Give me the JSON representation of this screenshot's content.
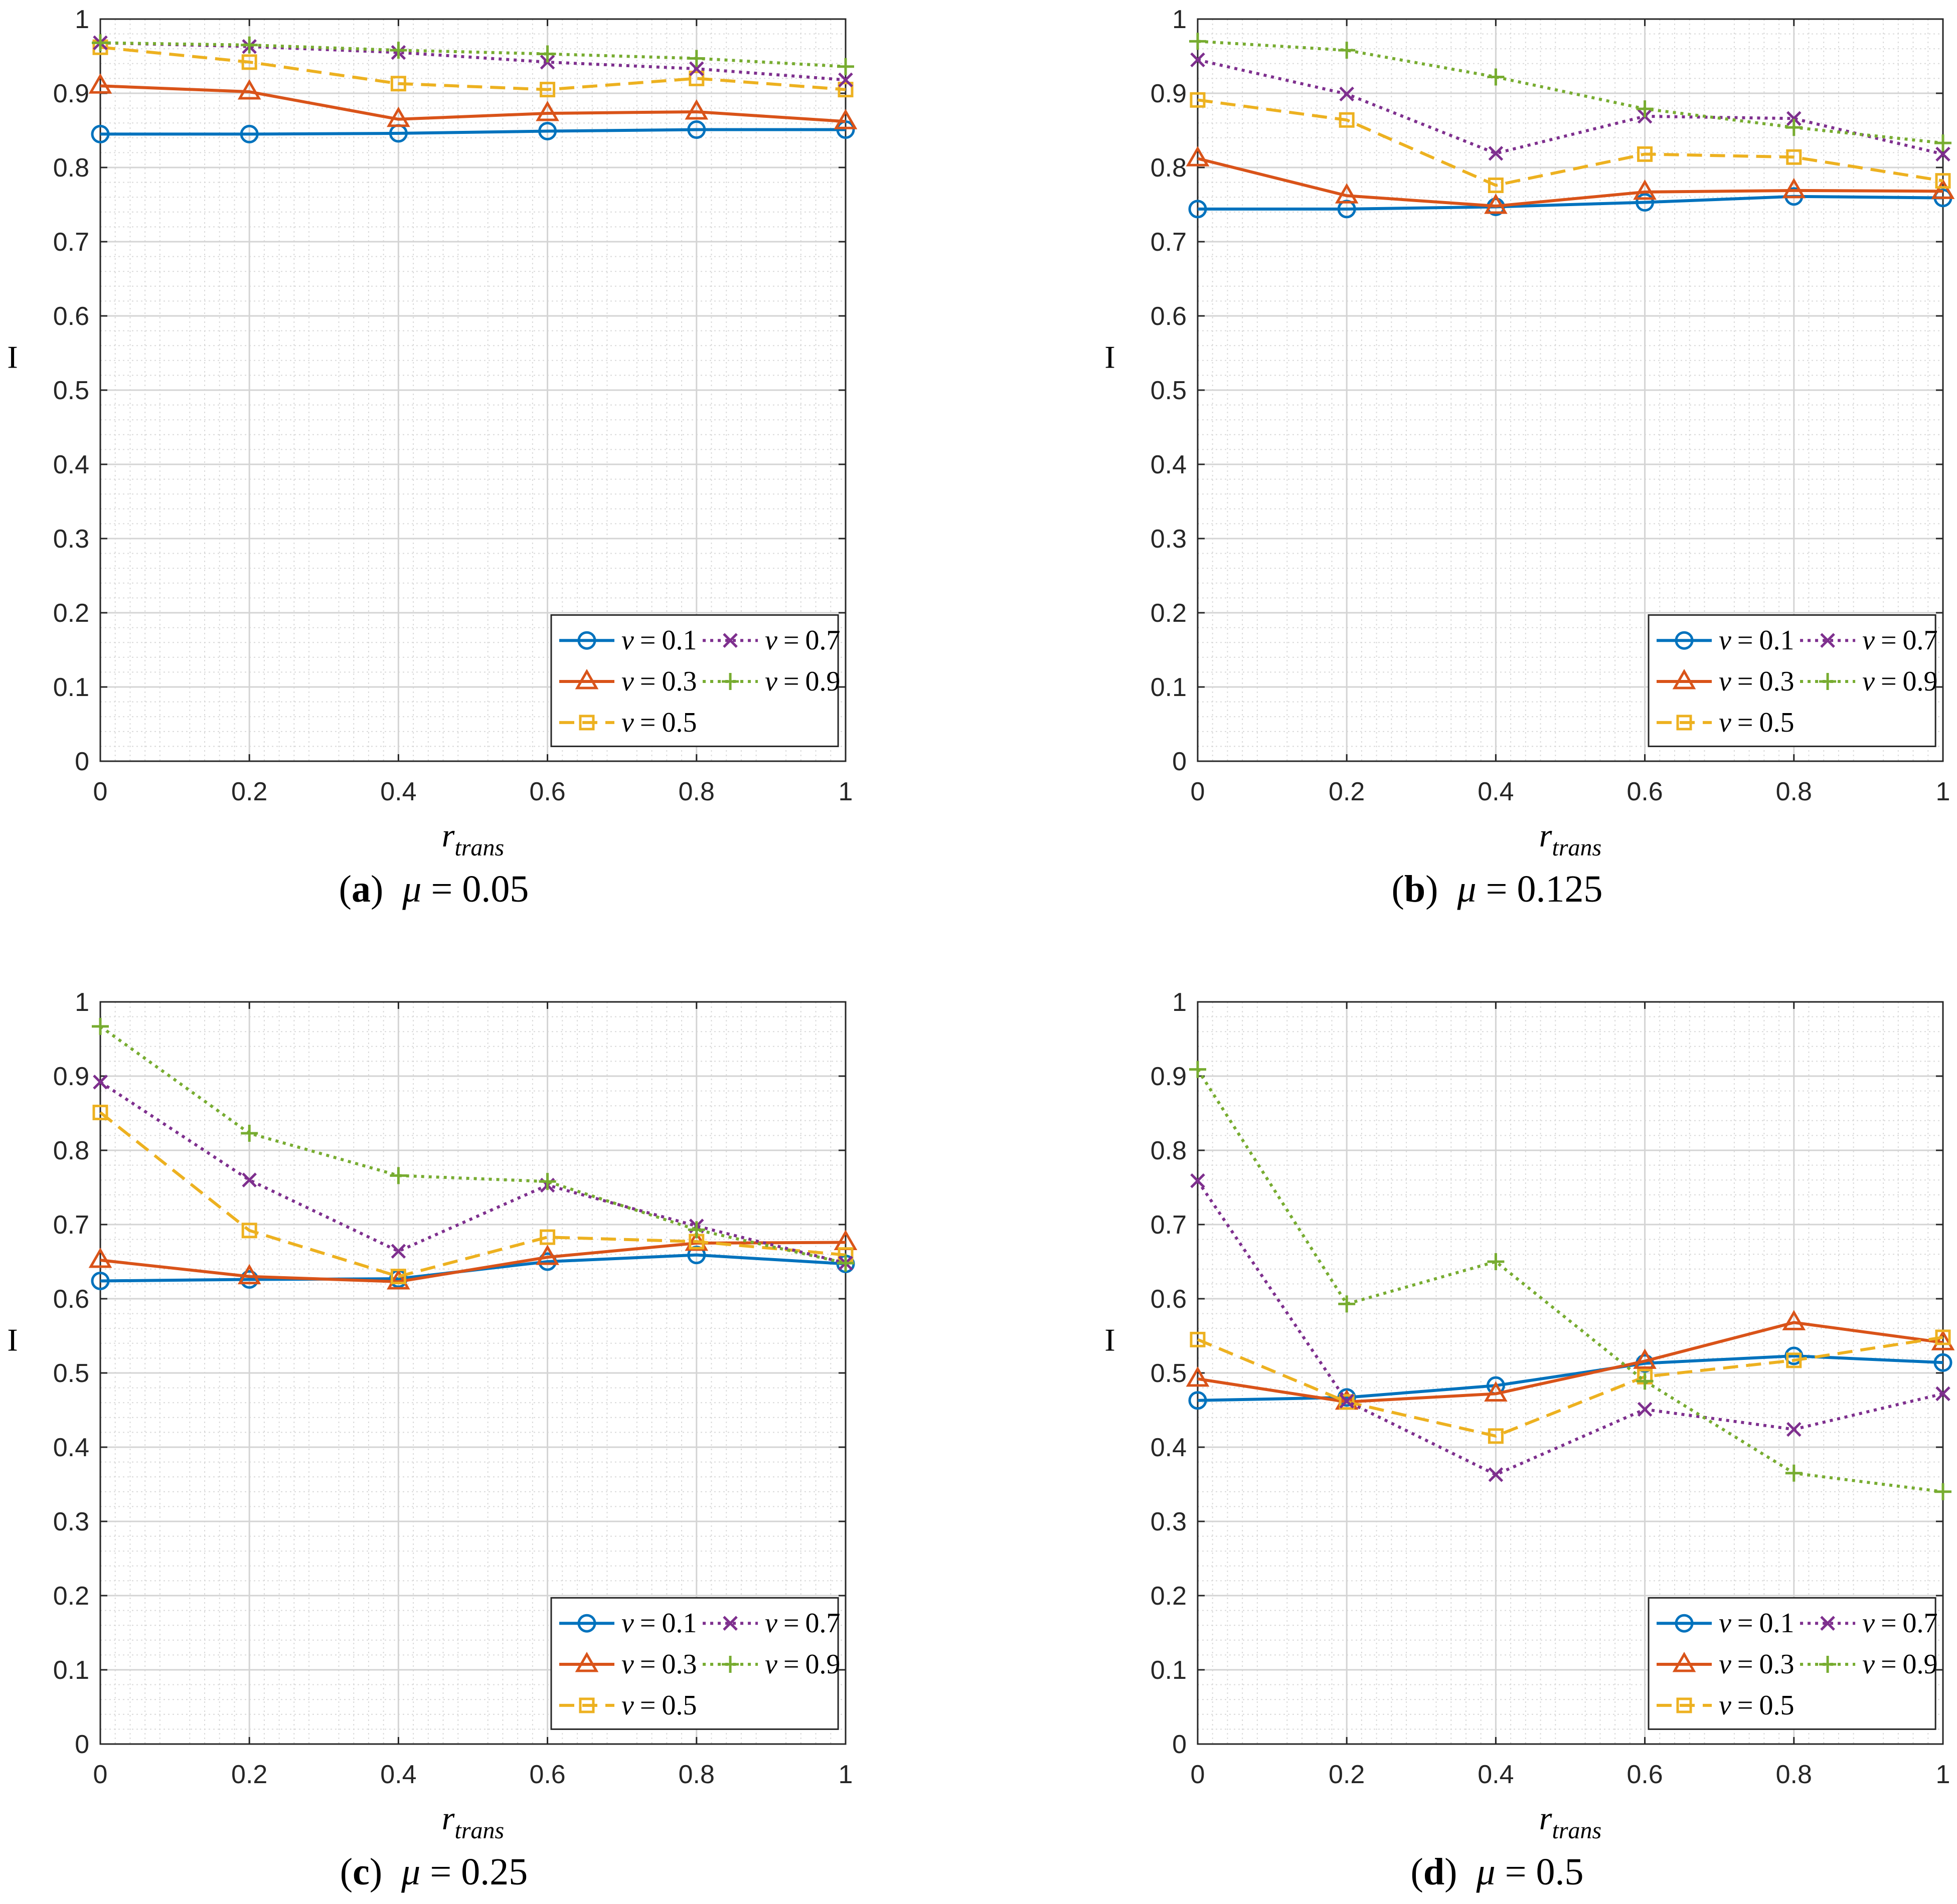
{
  "figure": {
    "captions": [
      {
        "letter_open": "(",
        "letter": "a",
        "letter_close": ")",
        "mu_symbol": "μ",
        "eq": "=",
        "mu_value": "0.05"
      },
      {
        "letter_open": "(",
        "letter": "b",
        "letter_close": ")",
        "mu_symbol": "μ",
        "eq": "=",
        "mu_value": "0.125"
      },
      {
        "letter_open": "(",
        "letter": "c",
        "letter_close": ")",
        "mu_symbol": "μ",
        "eq": "=",
        "mu_value": "0.25"
      },
      {
        "letter_open": "(",
        "letter": "d",
        "letter_close": ")",
        "mu_symbol": "μ",
        "eq": "=",
        "mu_value": "0.5"
      }
    ],
    "series_style": [
      {
        "name": "ν = 0.1",
        "nu_symbol": "ν",
        "eq": "=",
        "nu_value": "0.1",
        "color": "#0072BD",
        "marker": "circle",
        "dash": "solid"
      },
      {
        "name": "ν = 0.3",
        "nu_symbol": "ν",
        "eq": "=",
        "nu_value": "0.3",
        "color": "#D95319",
        "marker": "triangle",
        "dash": "solid"
      },
      {
        "name": "ν = 0.5",
        "nu_symbol": "ν",
        "eq": "=",
        "nu_value": "0.5",
        "color": "#EDB120",
        "marker": "square",
        "dash": "dashed"
      },
      {
        "name": "ν = 0.7",
        "nu_symbol": "ν",
        "eq": "=",
        "nu_value": "0.7",
        "color": "#7E2F8E",
        "marker": "x",
        "dash": "dotted"
      },
      {
        "name": "ν = 0.9",
        "nu_symbol": "ν",
        "eq": "=",
        "nu_value": "0.9",
        "color": "#77AC30",
        "marker": "plus",
        "dash": "dotted"
      }
    ]
  },
  "chart_data": [
    {
      "type": "line",
      "title": "",
      "xlabel": "r",
      "xlabel_sub": "trans",
      "ylabel": "I",
      "x": [
        0,
        0.2,
        0.4,
        0.6,
        0.8,
        1
      ],
      "xlim": [
        0,
        1
      ],
      "ylim": [
        0,
        1
      ],
      "xticks": [
        "0",
        "0.2",
        "0.4",
        "0.6",
        "0.8",
        "1"
      ],
      "yticks": [
        "0",
        "0.1",
        "0.2",
        "0.3",
        "0.4",
        "0.5",
        "0.6",
        "0.7",
        "0.8",
        "0.9",
        "1"
      ],
      "grid": true,
      "legend_position": "bottom-right",
      "series": [
        {
          "name": "ν = 0.1",
          "values": [
            0.845,
            0.845,
            0.846,
            0.849,
            0.851,
            0.851
          ]
        },
        {
          "name": "ν = 0.3",
          "values": [
            0.91,
            0.902,
            0.865,
            0.873,
            0.875,
            0.862
          ]
        },
        {
          "name": "ν = 0.5",
          "values": [
            0.962,
            0.942,
            0.913,
            0.905,
            0.92,
            0.905
          ]
        },
        {
          "name": "ν = 0.7",
          "values": [
            0.968,
            0.963,
            0.955,
            0.942,
            0.933,
            0.918
          ]
        },
        {
          "name": "ν = 0.9",
          "values": [
            0.968,
            0.965,
            0.958,
            0.953,
            0.947,
            0.936
          ]
        }
      ]
    },
    {
      "type": "line",
      "title": "",
      "xlabel": "r",
      "xlabel_sub": "trans",
      "ylabel": "I",
      "x": [
        0,
        0.2,
        0.4,
        0.6,
        0.8,
        1
      ],
      "xlim": [
        0,
        1
      ],
      "ylim": [
        0,
        1
      ],
      "xticks": [
        "0",
        "0.2",
        "0.4",
        "0.6",
        "0.8",
        "1"
      ],
      "yticks": [
        "0",
        "0.1",
        "0.2",
        "0.3",
        "0.4",
        "0.5",
        "0.6",
        "0.7",
        "0.8",
        "0.9",
        "1"
      ],
      "grid": true,
      "legend_position": "bottom-right",
      "series": [
        {
          "name": "ν = 0.1",
          "values": [
            0.744,
            0.744,
            0.747,
            0.753,
            0.761,
            0.759
          ]
        },
        {
          "name": "ν = 0.3",
          "values": [
            0.812,
            0.762,
            0.748,
            0.767,
            0.769,
            0.768
          ]
        },
        {
          "name": "ν = 0.5",
          "values": [
            0.891,
            0.864,
            0.776,
            0.818,
            0.814,
            0.782
          ]
        },
        {
          "name": "ν = 0.7",
          "values": [
            0.945,
            0.899,
            0.819,
            0.869,
            0.866,
            0.818
          ]
        },
        {
          "name": "ν = 0.9",
          "values": [
            0.97,
            0.958,
            0.922,
            0.879,
            0.854,
            0.833
          ]
        }
      ]
    },
    {
      "type": "line",
      "title": "",
      "xlabel": "r",
      "xlabel_sub": "trans",
      "ylabel": "I",
      "x": [
        0,
        0.2,
        0.4,
        0.6,
        0.8,
        1
      ],
      "xlim": [
        0,
        1
      ],
      "ylim": [
        0,
        1
      ],
      "xticks": [
        "0",
        "0.2",
        "0.4",
        "0.6",
        "0.8",
        "1"
      ],
      "yticks": [
        "0",
        "0.1",
        "0.2",
        "0.3",
        "0.4",
        "0.5",
        "0.6",
        "0.7",
        "0.8",
        "0.9",
        "1"
      ],
      "grid": true,
      "legend_position": "bottom-right",
      "series": [
        {
          "name": "ν = 0.1",
          "values": [
            0.624,
            0.626,
            0.627,
            0.65,
            0.659,
            0.647
          ]
        },
        {
          "name": "ν = 0.3",
          "values": [
            0.652,
            0.63,
            0.623,
            0.656,
            0.675,
            0.676
          ]
        },
        {
          "name": "ν = 0.5",
          "values": [
            0.851,
            0.692,
            0.63,
            0.683,
            0.677,
            0.659
          ]
        },
        {
          "name": "ν = 0.7",
          "values": [
            0.892,
            0.76,
            0.664,
            0.753,
            0.698,
            0.648
          ]
        },
        {
          "name": "ν = 0.9",
          "values": [
            0.967,
            0.823,
            0.766,
            0.758,
            0.693,
            0.648
          ]
        }
      ]
    },
    {
      "type": "line",
      "title": "",
      "xlabel": "r",
      "xlabel_sub": "trans",
      "ylabel": "I",
      "x": [
        0,
        0.2,
        0.4,
        0.6,
        0.8,
        1
      ],
      "xlim": [
        0,
        1
      ],
      "ylim": [
        0,
        1
      ],
      "xticks": [
        "0",
        "0.2",
        "0.4",
        "0.6",
        "0.8",
        "1"
      ],
      "yticks": [
        "0",
        "0.1",
        "0.2",
        "0.3",
        "0.4",
        "0.5",
        "0.6",
        "0.7",
        "0.8",
        "0.9",
        "1"
      ],
      "grid": true,
      "legend_position": "bottom-right",
      "series": [
        {
          "name": "ν = 0.1",
          "values": [
            0.463,
            0.467,
            0.483,
            0.513,
            0.523,
            0.514
          ]
        },
        {
          "name": "ν = 0.3",
          "values": [
            0.492,
            0.461,
            0.472,
            0.516,
            0.568,
            0.541
          ]
        },
        {
          "name": "ν = 0.5",
          "values": [
            0.545,
            0.461,
            0.415,
            0.495,
            0.517,
            0.548
          ]
        },
        {
          "name": "ν = 0.7",
          "values": [
            0.759,
            0.462,
            0.363,
            0.451,
            0.424,
            0.472
          ]
        },
        {
          "name": "ν = 0.9",
          "values": [
            0.909,
            0.593,
            0.65,
            0.489,
            0.365,
            0.34
          ]
        }
      ]
    }
  ]
}
